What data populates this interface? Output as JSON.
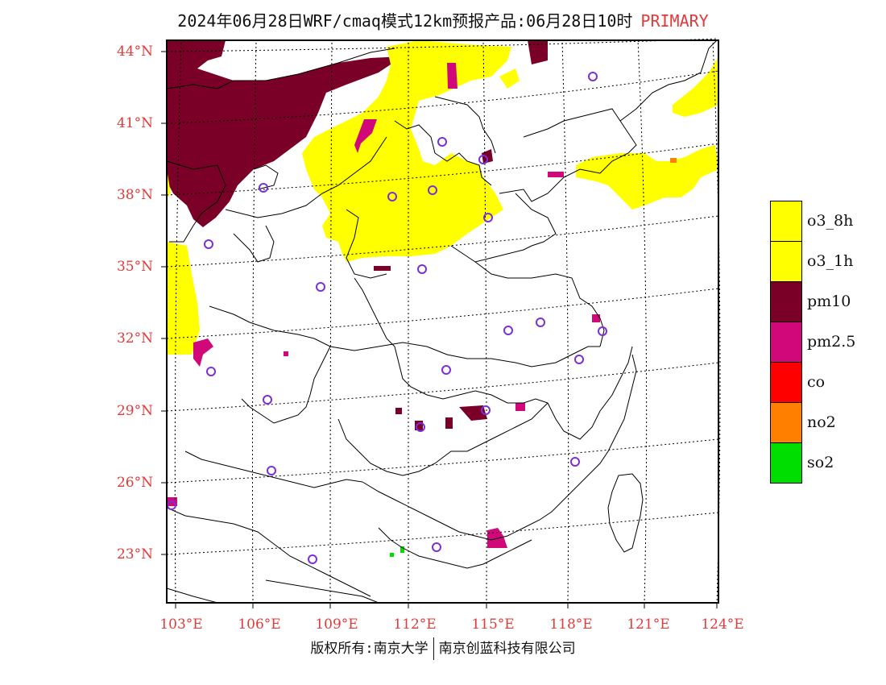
{
  "header": {
    "title": "2024年06月28日WRF/cmaq模式12km预报产品:06月28日10时",
    "tag": "PRIMARY"
  },
  "map": {
    "lat_labels": [
      "44°N",
      "41°N",
      "38°N",
      "35°N",
      "32°N",
      "29°N",
      "26°N",
      "23°N"
    ],
    "lon_labels": [
      "103°E",
      "106°E",
      "109°E",
      "112°E",
      "115°E",
      "118°E",
      "121°E",
      "124°E"
    ],
    "extent": {
      "lon": [
        102.8,
        124.0
      ],
      "lat": [
        21.0,
        44.5
      ]
    }
  },
  "legend": {
    "items": [
      {
        "label": "o3_8h",
        "color": "#ffff00"
      },
      {
        "label": "o3_1h",
        "color": "#ffff00"
      },
      {
        "label": "pm10",
        "color": "#7a0028"
      },
      {
        "label": "pm2.5",
        "color": "#d0087a"
      },
      {
        "label": "co",
        "color": "#ff0000"
      },
      {
        "label": "no2",
        "color": "#ff7f00"
      },
      {
        "label": "so2",
        "color": "#00dd00"
      }
    ]
  },
  "footer": {
    "left": "版权所有:南京大学",
    "right": "南京创蓝科技有限公司"
  }
}
